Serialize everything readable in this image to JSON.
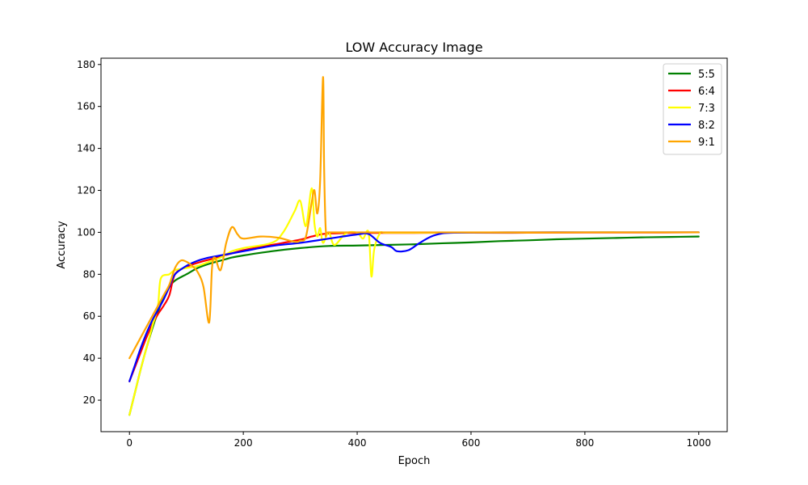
{
  "chart_data": {
    "type": "line",
    "title": "LOW Accuracy Image",
    "xlabel": "Epoch",
    "ylabel": "Accuracy",
    "xlim": [
      -50,
      1050
    ],
    "ylim": [
      5,
      183
    ],
    "xticks": [
      0,
      200,
      400,
      600,
      800,
      1000
    ],
    "yticks": [
      20,
      40,
      60,
      80,
      100,
      120,
      140,
      160,
      180
    ],
    "grid": false,
    "legend": "top-right",
    "series": [
      {
        "name": "5:5",
        "color": "#008000",
        "x": [
          0,
          10,
          20,
          30,
          40,
          50,
          60,
          70,
          80,
          100,
          120,
          140,
          160,
          180,
          200,
          250,
          300,
          350,
          400,
          450,
          500,
          550,
          600,
          650,
          700,
          750,
          800,
          850,
          900,
          950,
          1000
        ],
        "y": [
          13,
          24,
          35,
          45,
          54,
          62,
          69,
          74,
          77,
          80,
          83,
          85,
          86.5,
          88,
          89,
          91,
          92.5,
          93.5,
          93.7,
          94,
          94.3,
          94.8,
          95.2,
          95.8,
          96.2,
          96.7,
          97,
          97.3,
          97.6,
          97.8,
          98
        ]
      },
      {
        "name": "6:4",
        "color": "#ff0000",
        "x": [
          0,
          10,
          20,
          30,
          40,
          50,
          60,
          70,
          80,
          100,
          120,
          140,
          160,
          180,
          200,
          250,
          300,
          320,
          340,
          360,
          400,
          450,
          500,
          550,
          600,
          700,
          800,
          900,
          1000
        ],
        "y": [
          29,
          36,
          43,
          50,
          56,
          61,
          65,
          70,
          80,
          83.5,
          85.5,
          87,
          88.5,
          90,
          91.5,
          94,
          96.5,
          98,
          99.2,
          99.5,
          99.7,
          99.7,
          99.7,
          99.8,
          99.8,
          99.8,
          99.9,
          99.9,
          100
        ]
      },
      {
        "name": "7:3",
        "color": "#ffff00",
        "x": [
          0,
          10,
          20,
          30,
          40,
          50,
          55,
          70,
          80,
          100,
          120,
          140,
          160,
          180,
          200,
          250,
          270,
          290,
          300,
          310,
          320,
          325,
          330,
          335,
          340,
          350,
          360,
          380,
          400,
          410,
          420,
          425,
          430,
          440,
          450,
          500,
          600,
          700,
          800,
          900,
          1000
        ],
        "y": [
          13,
          24,
          35,
          45,
          55,
          65,
          78,
          80,
          82,
          83,
          84,
          86,
          88,
          91,
          92.5,
          95,
          100,
          110,
          115,
          103,
          121,
          104,
          98,
          102,
          95,
          100,
          94,
          99.5,
          99.8,
          97,
          100,
          79,
          92,
          99.5,
          99.8,
          99.8,
          99.9,
          99.9,
          100,
          100,
          100
        ]
      },
      {
        "name": "8:2",
        "color": "#0000ff",
        "x": [
          0,
          10,
          20,
          30,
          40,
          50,
          60,
          70,
          80,
          100,
          120,
          140,
          160,
          180,
          200,
          250,
          300,
          350,
          400,
          420,
          440,
          460,
          470,
          490,
          510,
          530,
          550,
          570,
          600,
          700,
          800,
          900,
          1000
        ],
        "y": [
          29,
          37,
          45,
          52,
          58,
          63,
          68,
          74,
          80,
          84,
          86.5,
          88,
          89,
          90,
          91,
          93.5,
          95,
          97,
          99,
          99.2,
          95,
          93,
          91,
          91.5,
          95,
          98,
          99.5,
          99.8,
          99.9,
          100,
          100,
          100,
          100
        ]
      },
      {
        "name": "9:1",
        "color": "#ffa500",
        "x": [
          0,
          20,
          40,
          60,
          70,
          80,
          90,
          100,
          110,
          120,
          130,
          140,
          145,
          150,
          160,
          170,
          180,
          190,
          200,
          230,
          260,
          290,
          300,
          310,
          320,
          325,
          330,
          335,
          340,
          342,
          345,
          350,
          400,
          500,
          600,
          700,
          800,
          900,
          1000
        ],
        "y": [
          40,
          50,
          60,
          70,
          75,
          83,
          86.5,
          86,
          84,
          81,
          74,
          57,
          83,
          88,
          82,
          95,
          102.5,
          99,
          97,
          98,
          97.5,
          95.5,
          96,
          98,
          114,
          120,
          109,
          125,
          174,
          130,
          100.5,
          100,
          100,
          100,
          100,
          100,
          100,
          100,
          100
        ]
      }
    ]
  }
}
